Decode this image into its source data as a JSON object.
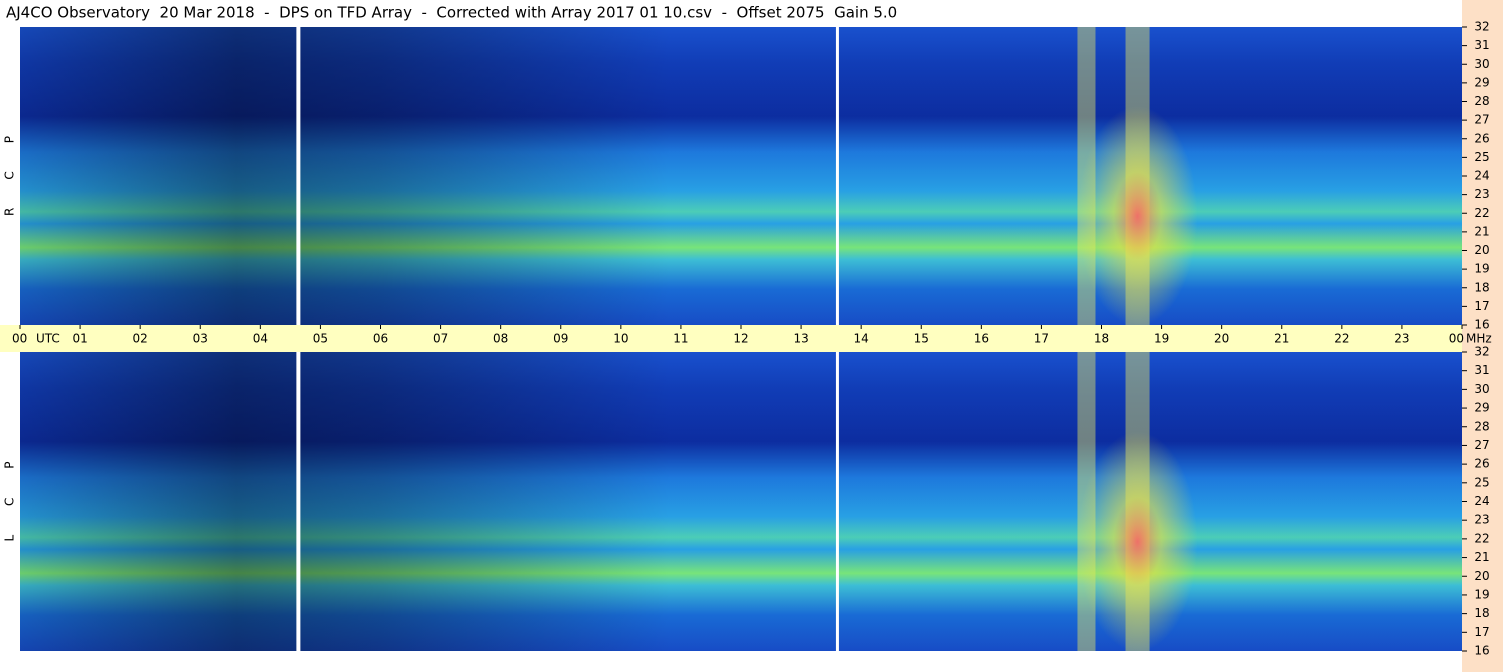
{
  "chart_data": {
    "type": "spectrogram",
    "title": "AJ4CO Observatory  20 Mar 2018  -  DPS on TFD Array  -  Corrected with Array 2017 01 10.csv  -  Offset 2075  Gain 5.0",
    "x_label": "UTC",
    "y_label": "MHz",
    "panels": [
      {
        "name": "R C P"
      },
      {
        "name": "L C P"
      }
    ],
    "xlim": [
      0,
      24
    ],
    "xticks": [
      {
        "value": 0,
        "label": "00"
      },
      {
        "value": 1,
        "label": "01"
      },
      {
        "value": 2,
        "label": "02"
      },
      {
        "value": 3,
        "label": "03"
      },
      {
        "value": 4,
        "label": "04"
      },
      {
        "value": 5,
        "label": "05"
      },
      {
        "value": 6,
        "label": "06"
      },
      {
        "value": 7,
        "label": "07"
      },
      {
        "value": 8,
        "label": "08"
      },
      {
        "value": 9,
        "label": "09"
      },
      10,
      11,
      12,
      13,
      14,
      15,
      16,
      17,
      18,
      19,
      20,
      21,
      22,
      23,
      {
        "value": 24,
        "label": "00"
      }
    ],
    "ylim": [
      16,
      32
    ],
    "yticks": [
      16,
      17,
      18,
      19,
      20,
      21,
      22,
      23,
      24,
      25,
      26,
      27,
      28,
      29,
      30,
      31,
      32
    ]
  }
}
